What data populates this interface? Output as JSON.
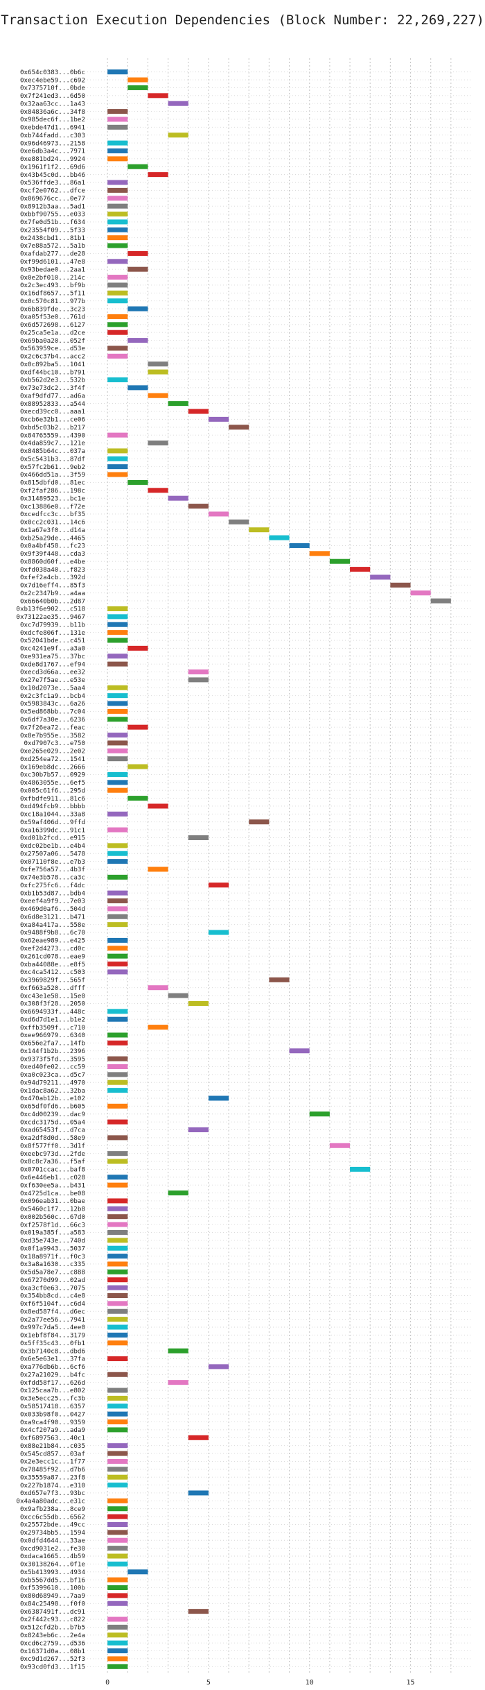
{
  "chart_data": {
    "type": "bar",
    "orientation": "horizontal",
    "title": "Transaction Execution Dependencies (Block Number: 22,269,227)",
    "xlabel": "",
    "ylabel": "",
    "xlim": [
      -1,
      18
    ],
    "xticks": [
      0,
      5,
      10,
      15
    ],
    "grid": true,
    "palette": [
      "#1f77b4",
      "#ff7f0e",
      "#2ca02c",
      "#d62728",
      "#9467bd",
      "#8c564b",
      "#e377c2",
      "#7f7f7f",
      "#bcbd22",
      "#17becf"
    ],
    "bar_span": 1,
    "transactions": [
      {
        "hash": "0x654c0383...0b6c",
        "level": 0,
        "color": 0
      },
      {
        "hash": "0xec4ebe59...c692",
        "level": 1,
        "color": 1
      },
      {
        "hash": "0x7375710f...0bde",
        "level": 1,
        "color": 2
      },
      {
        "hash": "0x7f241ed3...6d50",
        "level": 2,
        "color": 3
      },
      {
        "hash": "0x32aa63cc...1a43",
        "level": 3,
        "color": 4
      },
      {
        "hash": "0x84836a6c...34f8",
        "level": 0,
        "color": 5
      },
      {
        "hash": "0x985dec6f...1be2",
        "level": 0,
        "color": 6
      },
      {
        "hash": "0xebde47d1...6941",
        "level": 0,
        "color": 7
      },
      {
        "hash": "0xb744fadd...c303",
        "level": 3,
        "color": 8
      },
      {
        "hash": "0x96d46973...2158",
        "level": 0,
        "color": 9
      },
      {
        "hash": "0xe6db3a4c...7971",
        "level": 0,
        "color": 0
      },
      {
        "hash": "0xe881bd24...9924",
        "level": 0,
        "color": 1
      },
      {
        "hash": "0x1961f1f2...69d6",
        "level": 1,
        "color": 2
      },
      {
        "hash": "0x43b45c0d...bb46",
        "level": 2,
        "color": 3
      },
      {
        "hash": "0x536ffde3...86a1",
        "level": 0,
        "color": 4
      },
      {
        "hash": "0xcf2e0762...dfce",
        "level": 0,
        "color": 5
      },
      {
        "hash": "0x069676cc...0e77",
        "level": 0,
        "color": 6
      },
      {
        "hash": "0x8912b3aa...5ad1",
        "level": 0,
        "color": 7
      },
      {
        "hash": "0xbbf90755...e033",
        "level": 0,
        "color": 8
      },
      {
        "hash": "0x7fe0d51b...f634",
        "level": 0,
        "color": 9
      },
      {
        "hash": "0x23554f09...5f33",
        "level": 0,
        "color": 0
      },
      {
        "hash": "0x2438cbd1...81b1",
        "level": 0,
        "color": 1
      },
      {
        "hash": "0x7e88a572...5a1b",
        "level": 0,
        "color": 2
      },
      {
        "hash": "0xafdab277...de28",
        "level": 1,
        "color": 3
      },
      {
        "hash": "0xf99d6101...47e8",
        "level": 0,
        "color": 4
      },
      {
        "hash": "0x93bedae0...2aa1",
        "level": 1,
        "color": 5
      },
      {
        "hash": "0x0e2bf010...214c",
        "level": 0,
        "color": 6
      },
      {
        "hash": "0x2c3ec493...bf9b",
        "level": 0,
        "color": 7
      },
      {
        "hash": "0x16df8657...5f11",
        "level": 0,
        "color": 8
      },
      {
        "hash": "0x0c570c81...977b",
        "level": 0,
        "color": 9
      },
      {
        "hash": "0x6b839fde...3c23",
        "level": 1,
        "color": 0
      },
      {
        "hash": "0xa05f53e0...761d",
        "level": 0,
        "color": 1
      },
      {
        "hash": "0x6d572698...6127",
        "level": 0,
        "color": 2
      },
      {
        "hash": "0x25ca5e1a...d2ce",
        "level": 0,
        "color": 3
      },
      {
        "hash": "0x69ba0a20...052f",
        "level": 1,
        "color": 4
      },
      {
        "hash": "0x563959ce...d53e",
        "level": 0,
        "color": 5
      },
      {
        "hash": "0x2c6c37b4...acc2",
        "level": 0,
        "color": 6
      },
      {
        "hash": "0x0c892ba5...1041",
        "level": 2,
        "color": 7
      },
      {
        "hash": "0xdf44bc10...b791",
        "level": 2,
        "color": 8
      },
      {
        "hash": "0xb562d2e3...532b",
        "level": 0,
        "color": 9
      },
      {
        "hash": "0x73e73dc2...3f4f",
        "level": 1,
        "color": 0
      },
      {
        "hash": "0xaf9dfd77...ad6a",
        "level": 2,
        "color": 1
      },
      {
        "hash": "0x88952833...a544",
        "level": 3,
        "color": 2
      },
      {
        "hash": "0xecd39cc0...aaa1",
        "level": 4,
        "color": 3
      },
      {
        "hash": "0xcb6e32b1...ce06",
        "level": 5,
        "color": 4
      },
      {
        "hash": "0xbd5c03b2...b217",
        "level": 6,
        "color": 5
      },
      {
        "hash": "0x84765559...4390",
        "level": 0,
        "color": 6
      },
      {
        "hash": "0x4da859c7...121e",
        "level": 2,
        "color": 7
      },
      {
        "hash": "0x8485b64c...037a",
        "level": 0,
        "color": 8
      },
      {
        "hash": "0x5c5431b3...87df",
        "level": 0,
        "color": 9
      },
      {
        "hash": "0x57fc2b61...9eb2",
        "level": 0,
        "color": 0
      },
      {
        "hash": "0x466dd51a...3f59",
        "level": 0,
        "color": 1
      },
      {
        "hash": "0x815dbfd0...81ec",
        "level": 1,
        "color": 2
      },
      {
        "hash": "0xf2faf286...198c",
        "level": 2,
        "color": 3
      },
      {
        "hash": "0x31489523...bc1e",
        "level": 3,
        "color": 4
      },
      {
        "hash": "0xc13886e0...f72e",
        "level": 4,
        "color": 5
      },
      {
        "hash": "0xcedfcc3c...bf35",
        "level": 5,
        "color": 6
      },
      {
        "hash": "0x0cc2c031...14c6",
        "level": 6,
        "color": 7
      },
      {
        "hash": "0x1a67e3f0...d14a",
        "level": 7,
        "color": 8
      },
      {
        "hash": "0xb25a29de...4465",
        "level": 8,
        "color": 9
      },
      {
        "hash": "0x0a4bf458...fc23",
        "level": 9,
        "color": 0
      },
      {
        "hash": "0x9f39f448...cda3",
        "level": 10,
        "color": 1
      },
      {
        "hash": "0x8860d60f...e4be",
        "level": 11,
        "color": 2
      },
      {
        "hash": "0xfd038a40...f823",
        "level": 12,
        "color": 3
      },
      {
        "hash": "0xfef2a4cb...392d",
        "level": 13,
        "color": 4
      },
      {
        "hash": "0x7d16eff4...85f3",
        "level": 14,
        "color": 5
      },
      {
        "hash": "0x2c2347b9...a4aa",
        "level": 15,
        "color": 6
      },
      {
        "hash": "0x66640b0b...2d87",
        "level": 16,
        "color": 7
      },
      {
        "hash": "0xb13f6e902...c518",
        "level": 0,
        "color": 8
      },
      {
        "hash": "0x73122ae35...9467",
        "level": 0,
        "color": 9
      },
      {
        "hash": "0xc7d79939...b11b",
        "level": 0,
        "color": 0
      },
      {
        "hash": "0xdcfe806f...131e",
        "level": 0,
        "color": 1
      },
      {
        "hash": "0x52041bde...c451",
        "level": 0,
        "color": 2
      },
      {
        "hash": "0xc4241e9f...a3a0",
        "level": 1,
        "color": 3
      },
      {
        "hash": "0xe931ea75...37bc",
        "level": 0,
        "color": 4
      },
      {
        "hash": "0xde8d1767...ef94",
        "level": 0,
        "color": 5
      },
      {
        "hash": "0xecd3d66a...ee32",
        "level": 4,
        "color": 6
      },
      {
        "hash": "0x27e7f5ae...e53e",
        "level": 4,
        "color": 7
      },
      {
        "hash": "0x10d2073e...5aa4",
        "level": 0,
        "color": 8
      },
      {
        "hash": "0x2c3fc1a9...bcb4",
        "level": 0,
        "color": 9
      },
      {
        "hash": "0x5983843c...6a26",
        "level": 0,
        "color": 0
      },
      {
        "hash": "0x5ed868bb...7c04",
        "level": 0,
        "color": 1
      },
      {
        "hash": "0x6df7a30e...6236",
        "level": 0,
        "color": 2
      },
      {
        "hash": "0x7f26ea72...feac",
        "level": 1,
        "color": 3
      },
      {
        "hash": "0x8e7b955e...3582",
        "level": 0,
        "color": 4
      },
      {
        "hash": "0xd7907c3...e750",
        "level": 0,
        "color": 5
      },
      {
        "hash": "0xe265e029...2e02",
        "level": 0,
        "color": 6
      },
      {
        "hash": "0xd254ea72...1541",
        "level": 0,
        "color": 7
      },
      {
        "hash": "0x169eb8dc...2666",
        "level": 1,
        "color": 8
      },
      {
        "hash": "0xc30b7b57...0929",
        "level": 0,
        "color": 9
      },
      {
        "hash": "0x4863055e...6ef5",
        "level": 0,
        "color": 0
      },
      {
        "hash": "0x005c61f6...295d",
        "level": 0,
        "color": 1
      },
      {
        "hash": "0xfbdfe911...81c6",
        "level": 1,
        "color": 2
      },
      {
        "hash": "0xd494fcb9...bbbb",
        "level": 2,
        "color": 3
      },
      {
        "hash": "0xc18a1044...33a8",
        "level": 0,
        "color": 4
      },
      {
        "hash": "0x59af406d...9ffd",
        "level": 7,
        "color": 5
      },
      {
        "hash": "0xa16399dc...91c1",
        "level": 0,
        "color": 6
      },
      {
        "hash": "0xd01b2fcd...e915",
        "level": 4,
        "color": 7
      },
      {
        "hash": "0xdc02be1b...e4b4",
        "level": 0,
        "color": 8
      },
      {
        "hash": "0x27507a06...5478",
        "level": 0,
        "color": 9
      },
      {
        "hash": "0x07110f8e...e7b3",
        "level": 0,
        "color": 0
      },
      {
        "hash": "0xfe756a57...4b3f",
        "level": 2,
        "color": 1
      },
      {
        "hash": "0x74e3b578...ca3c",
        "level": 0,
        "color": 2
      },
      {
        "hash": "0xfc275fc6...f4dc",
        "level": 5,
        "color": 3
      },
      {
        "hash": "0xb1b53d87...bdb4",
        "level": 0,
        "color": 4
      },
      {
        "hash": "0xeef4a9f9...7e03",
        "level": 0,
        "color": 5
      },
      {
        "hash": "0x469d0af6...504d",
        "level": 0,
        "color": 6
      },
      {
        "hash": "0x6d8e3121...b471",
        "level": 0,
        "color": 7
      },
      {
        "hash": "0xa84a417a...558e",
        "level": 0,
        "color": 8
      },
      {
        "hash": "0x9488f9b8...6c70",
        "level": 5,
        "color": 9
      },
      {
        "hash": "0x62eae989...e425",
        "level": 0,
        "color": 0
      },
      {
        "hash": "0xef2d4273...cd0c",
        "level": 0,
        "color": 1
      },
      {
        "hash": "0x261cd078...eae9",
        "level": 0,
        "color": 2
      },
      {
        "hash": "0xba44088e...e8f5",
        "level": 0,
        "color": 3
      },
      {
        "hash": "0xc4ca5412...c503",
        "level": 0,
        "color": 4
      },
      {
        "hash": "0x3969829f...565f",
        "level": 8,
        "color": 5
      },
      {
        "hash": "0xf663a520...dfff",
        "level": 2,
        "color": 6
      },
      {
        "hash": "0xc43e1e58...15e0",
        "level": 3,
        "color": 7
      },
      {
        "hash": "0x308f3f28...2050",
        "level": 4,
        "color": 8
      },
      {
        "hash": "0x6694933f...448c",
        "level": 0,
        "color": 9
      },
      {
        "hash": "0xd6d7d1e1...b1e2",
        "level": 0,
        "color": 0
      },
      {
        "hash": "0xffb3509f...c710",
        "level": 2,
        "color": 1
      },
      {
        "hash": "0xee966979...6340",
        "level": 0,
        "color": 2
      },
      {
        "hash": "0x656e2fa7...14fb",
        "level": 0,
        "color": 3
      },
      {
        "hash": "0x144f1b2b...2396",
        "level": 9,
        "color": 4
      },
      {
        "hash": "0x9373f5fd...3595",
        "level": 0,
        "color": 5
      },
      {
        "hash": "0xed40fe02...cc59",
        "level": 0,
        "color": 6
      },
      {
        "hash": "0xa0c023ca...d5c7",
        "level": 0,
        "color": 7
      },
      {
        "hash": "0x94d79211...4970",
        "level": 0,
        "color": 8
      },
      {
        "hash": "0x1dac8a62...32ba",
        "level": 0,
        "color": 9
      },
      {
        "hash": "0x470ab12b...e102",
        "level": 5,
        "color": 0
      },
      {
        "hash": "0x65df0fd6...b605",
        "level": 0,
        "color": 1
      },
      {
        "hash": "0xc4d00239...dac9",
        "level": 10,
        "color": 2
      },
      {
        "hash": "0xcdc3175d...05a4",
        "level": 0,
        "color": 3
      },
      {
        "hash": "0xad65453f...d7ca",
        "level": 4,
        "color": 4
      },
      {
        "hash": "0xa2df8d0d...58e9",
        "level": 0,
        "color": 5
      },
      {
        "hash": "0x8f577ff0...3d1f",
        "level": 11,
        "color": 6
      },
      {
        "hash": "0xeebc973d...2fde",
        "level": 0,
        "color": 7
      },
      {
        "hash": "0x8c8c7a36...f5af",
        "level": 0,
        "color": 8
      },
      {
        "hash": "0x0701ccac...baf8",
        "level": 12,
        "color": 9
      },
      {
        "hash": "0x6e446eb1...c028",
        "level": 0,
        "color": 0
      },
      {
        "hash": "0xf630ee5a...b431",
        "level": 0,
        "color": 1
      },
      {
        "hash": "0x4725d1ca...be08",
        "level": 3,
        "color": 2
      },
      {
        "hash": "0x096eab31...0bae",
        "level": 0,
        "color": 3
      },
      {
        "hash": "0x5460c1f7...12b8",
        "level": 0,
        "color": 4
      },
      {
        "hash": "0x002b560c...67d0",
        "level": 0,
        "color": 5
      },
      {
        "hash": "0xf2578f1d...66c3",
        "level": 0,
        "color": 6
      },
      {
        "hash": "0x019a385f...a583",
        "level": 0,
        "color": 7
      },
      {
        "hash": "0xd35e743e...740d",
        "level": 0,
        "color": 8
      },
      {
        "hash": "0x0f1a9943...5037",
        "level": 0,
        "color": 9
      },
      {
        "hash": "0x18a8971f...f0c3",
        "level": 0,
        "color": 0
      },
      {
        "hash": "0x3a8a1630...c335",
        "level": 0,
        "color": 1
      },
      {
        "hash": "0x5d5a78e7...c888",
        "level": 0,
        "color": 2
      },
      {
        "hash": "0x67270d99...02ad",
        "level": 0,
        "color": 3
      },
      {
        "hash": "0xa3cf0e63...7075",
        "level": 0,
        "color": 4
      },
      {
        "hash": "0x354bb8cd...c4e8",
        "level": 0,
        "color": 5
      },
      {
        "hash": "0xf6f5104f...c6d4",
        "level": 0,
        "color": 6
      },
      {
        "hash": "0x8ed587f4...d6ec",
        "level": 0,
        "color": 7
      },
      {
        "hash": "0x2a77ee56...7941",
        "level": 0,
        "color": 8
      },
      {
        "hash": "0x997c7da5...4ee0",
        "level": 0,
        "color": 9
      },
      {
        "hash": "0x1ebf8f84...3179",
        "level": 0,
        "color": 0
      },
      {
        "hash": "0x5ff35c43...0fb1",
        "level": 0,
        "color": 1
      },
      {
        "hash": "0x3b7140c8...dbd6",
        "level": 3,
        "color": 2
      },
      {
        "hash": "0x6e5e63e1...37fa",
        "level": 0,
        "color": 3
      },
      {
        "hash": "0xa776db6b...6cf6",
        "level": 5,
        "color": 4
      },
      {
        "hash": "0x27a21029...b4fc",
        "level": 0,
        "color": 5
      },
      {
        "hash": "0xfdd58f17...626d",
        "level": 3,
        "color": 6
      },
      {
        "hash": "0x125caa7b...e802",
        "level": 0,
        "color": 7
      },
      {
        "hash": "0x3e5ecc25...fc3b",
        "level": 0,
        "color": 8
      },
      {
        "hash": "0x58517418...6357",
        "level": 0,
        "color": 9
      },
      {
        "hash": "0x033b98f0...0427",
        "level": 0,
        "color": 0
      },
      {
        "hash": "0xa9ca4f90...9359",
        "level": 0,
        "color": 1
      },
      {
        "hash": "0x4cf207a9...ada9",
        "level": 0,
        "color": 2
      },
      {
        "hash": "0xf6897563...40c1",
        "level": 4,
        "color": 3
      },
      {
        "hash": "0x88e21b84...c035",
        "level": 0,
        "color": 4
      },
      {
        "hash": "0x545cd857...03af",
        "level": 0,
        "color": 5
      },
      {
        "hash": "0x2e3ecc1c...1f77",
        "level": 0,
        "color": 6
      },
      {
        "hash": "0x78485f92...d7b6",
        "level": 0,
        "color": 7
      },
      {
        "hash": "0x35559a87...23f8",
        "level": 0,
        "color": 8
      },
      {
        "hash": "0x227b1874...e310",
        "level": 0,
        "color": 9
      },
      {
        "hash": "0xd657e7f3...93bc",
        "level": 4,
        "color": 0
      },
      {
        "hash": "0x4a4a80adc...e31c",
        "level": 0,
        "color": 1
      },
      {
        "hash": "0x9afb238a...8ce9",
        "level": 0,
        "color": 2
      },
      {
        "hash": "0xcc6c55db...6562",
        "level": 0,
        "color": 3
      },
      {
        "hash": "0x25572bde...49cc",
        "level": 0,
        "color": 4
      },
      {
        "hash": "0x29734bb5...1594",
        "level": 0,
        "color": 5
      },
      {
        "hash": "0x0dfd4644...33ae",
        "level": 0,
        "color": 6
      },
      {
        "hash": "0xcd9031e2...fe30",
        "level": 0,
        "color": 7
      },
      {
        "hash": "0xdaca1665...4b59",
        "level": 0,
        "color": 8
      },
      {
        "hash": "0x30138264...0f1e",
        "level": 0,
        "color": 9
      },
      {
        "hash": "0x5b413993...4934",
        "level": 1,
        "color": 0
      },
      {
        "hash": "0xb5567dd5...bf16",
        "level": 0,
        "color": 1
      },
      {
        "hash": "0xf5399610...100b",
        "level": 0,
        "color": 2
      },
      {
        "hash": "0x80d68949...7aa9",
        "level": 0,
        "color": 3
      },
      {
        "hash": "0x84c25498...f0f0",
        "level": 0,
        "color": 4
      },
      {
        "hash": "0x6387491f...dc91",
        "level": 4,
        "color": 5
      },
      {
        "hash": "0x2f442c93...c822",
        "level": 0,
        "color": 6
      },
      {
        "hash": "0x512cfd2b...b7b5",
        "level": 0,
        "color": 7
      },
      {
        "hash": "0x8243eb6c...2e4a",
        "level": 0,
        "color": 8
      },
      {
        "hash": "0xcd6c2759...d536",
        "level": 0,
        "color": 9
      },
      {
        "hash": "0x16371d0a...08b1",
        "level": 0,
        "color": 0
      },
      {
        "hash": "0xc9d1d267...52f3",
        "level": 0,
        "color": 1
      },
      {
        "hash": "0x93cd0fd3...1f15",
        "level": 0,
        "color": 2
      }
    ]
  }
}
